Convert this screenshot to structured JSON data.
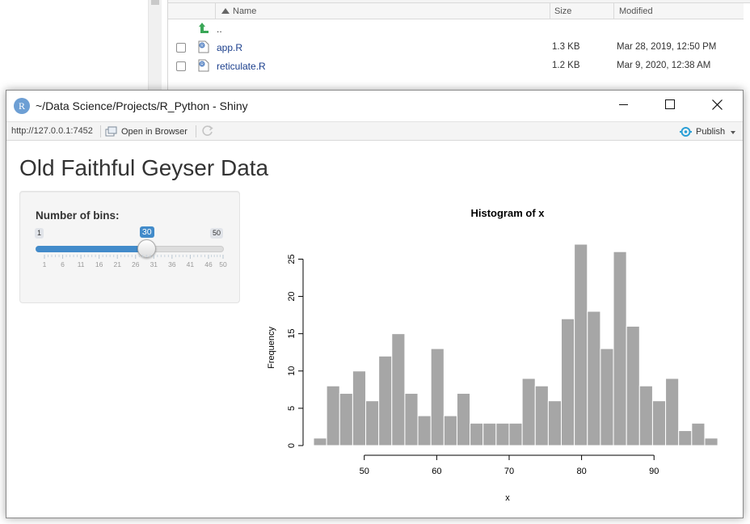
{
  "files_pane": {
    "columns": {
      "name": "Name",
      "size": "Size",
      "modified": "Modified"
    },
    "parent_dir": "..",
    "files": [
      {
        "name": "app.R",
        "size": "1.3 KB",
        "modified": "Mar 28, 2019, 12:50 PM"
      },
      {
        "name": "reticulate.R",
        "size": "1.2 KB",
        "modified": "Mar 9, 2020, 12:38 AM"
      }
    ]
  },
  "window": {
    "title": "~/Data Science/Projects/R_Python - Shiny",
    "logo_letter": "R"
  },
  "toolbar": {
    "url": "http://127.0.0.1:7452",
    "open_in_browser": "Open in Browser",
    "publish": "Publish"
  },
  "app": {
    "title": "Old Faithful Geyser Data",
    "slider": {
      "label": "Number of bins:",
      "min": 1,
      "max": 50,
      "value": 30,
      "grid_labels": [
        "1",
        "6",
        "11",
        "16",
        "21",
        "26",
        "31",
        "36",
        "41",
        "46",
        "50"
      ]
    }
  },
  "colors": {
    "slider_accent": "#428bca",
    "bar_fill": "#a6a6a6",
    "publish_icon": "#2a9fd6",
    "folder_up_icon": "#3aa757"
  },
  "icons": {
    "minimize": "minimize-icon",
    "maximize": "maximize-icon",
    "close": "close-icon",
    "open_browser": "open-browser-icon",
    "refresh": "refresh-icon",
    "publish": "publish-icon",
    "folder_up": "folder-up-icon",
    "r_file": "r-file-icon"
  },
  "chart_data": {
    "type": "bar",
    "title": "Histogram of x",
    "xlabel": "x",
    "ylabel": "Frequency",
    "bin_start": 43,
    "bin_width": 1.8,
    "values": [
      1,
      8,
      7,
      10,
      6,
      12,
      15,
      7,
      4,
      13,
      4,
      7,
      3,
      3,
      3,
      3,
      9,
      8,
      6,
      17,
      27,
      18,
      13,
      26,
      16,
      8,
      6,
      9,
      2,
      3,
      1
    ],
    "xticks": [
      50,
      60,
      70,
      80,
      90
    ],
    "yticks": [
      0,
      5,
      10,
      15,
      20,
      25
    ],
    "xlim": [
      43,
      96
    ],
    "ylim": [
      0,
      27
    ],
    "grid": false
  }
}
